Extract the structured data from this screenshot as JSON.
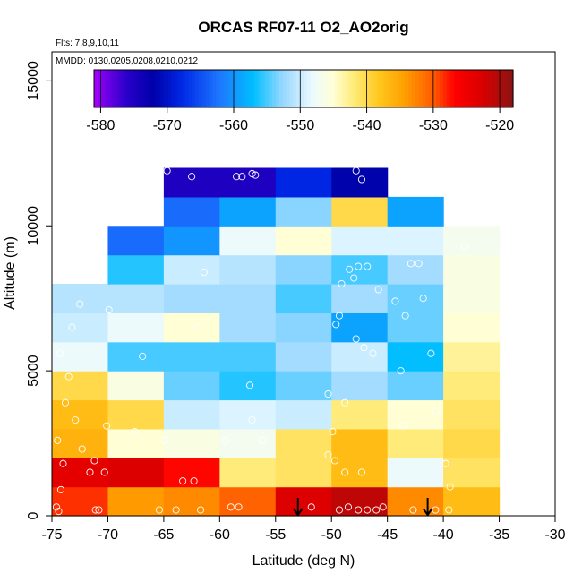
{
  "chart_data": {
    "type": "heatmap",
    "title": "ORCAS RF07-11 O2_AO2orig",
    "subtitle_lines": [
      "Flts: 7,8,9,10,11",
      "MMDD: 0130,0205,0208,0210,0212"
    ],
    "xlabel": "Latitude (deg N)",
    "ylabel": "Altitude (m)",
    "xlim": [
      -75,
      -30
    ],
    "ylim": [
      0,
      16000
    ],
    "x_ticks": [
      -75,
      -70,
      -65,
      -60,
      -55,
      -50,
      -45,
      -40,
      -35,
      -30
    ],
    "y_ticks": [
      0,
      5000,
      10000,
      15000
    ],
    "colorbar": {
      "range": [
        -581,
        -518
      ],
      "ticks": [
        -580,
        -570,
        -560,
        -550,
        -540,
        -530,
        -520
      ]
    },
    "grid": {
      "lat_edges": [
        -75,
        -70,
        -65,
        -60,
        -55,
        -50,
        -45,
        -40,
        -35
      ],
      "alt_edges": [
        0,
        1000,
        2000,
        3000,
        4000,
        5000,
        6000,
        7000,
        8000,
        9000,
        10000,
        11000,
        12000
      ]
    },
    "cells": [
      [
        -528.5,
        -534,
        -533,
        -530.5,
        -523,
        -521,
        -533,
        -537
      ],
      [
        -524,
        -523,
        -527,
        -542,
        -541,
        -537,
        -548,
        -541
      ],
      [
        -536,
        -545,
        -546,
        -547,
        -541,
        -537,
        -542,
        -540
      ],
      [
        -537,
        -540,
        -550,
        -549,
        -550,
        -542,
        -545,
        -541
      ],
      [
        -540,
        -546,
        -554,
        -556,
        -554,
        -552,
        -554,
        -542
      ],
      [
        -548,
        -555,
        -555,
        -555,
        -552,
        -550,
        -557,
        -543
      ],
      [
        -550,
        -548,
        -545,
        -552,
        -553,
        -559,
        -554,
        -545
      ],
      [
        -551,
        -551,
        -552,
        -552,
        -555,
        -552,
        -554,
        -546
      ],
      [
        null,
        -556,
        -550,
        -551,
        -553,
        -555,
        -552,
        -546
      ],
      [
        null,
        -563,
        -560,
        -548,
        -545,
        -549,
        -549,
        -547
      ],
      [
        null,
        null,
        -563,
        -559,
        -553,
        -540,
        -559,
        null
      ],
      [
        null,
        null,
        -575,
        -575,
        -568,
        -572,
        null,
        null
      ]
    ],
    "observations": [
      [
        -74.6,
        300
      ],
      [
        -74.4,
        150
      ],
      [
        -74.2,
        900
      ],
      [
        -74.0,
        1800
      ],
      [
        -74.5,
        2600
      ],
      [
        -73.8,
        3900
      ],
      [
        -73.5,
        4800
      ],
      [
        -72.9,
        3300
      ],
      [
        -72.3,
        2300
      ],
      [
        -71.6,
        1500
      ],
      [
        -71.2,
        1900
      ],
      [
        -70.8,
        200
      ],
      [
        -71.1,
        200
      ],
      [
        -70.3,
        1500
      ],
      [
        -70.1,
        3100
      ],
      [
        -69.9,
        7100
      ],
      [
        -73.2,
        6500
      ],
      [
        -72.5,
        7300
      ],
      [
        -74.3,
        5600
      ],
      [
        -66.9,
        5500
      ],
      [
        -64.9,
        2600
      ],
      [
        -67.6,
        2900
      ],
      [
        -65.4,
        200
      ],
      [
        -63.9,
        200
      ],
      [
        -63.3,
        1200
      ],
      [
        -62.3,
        1200
      ],
      [
        -61.7,
        200
      ],
      [
        -62.0,
        6500
      ],
      [
        -61.4,
        8400
      ],
      [
        -64.7,
        11900
      ],
      [
        -62.5,
        11700
      ],
      [
        -58.5,
        11700
      ],
      [
        -58.0,
        11700
      ],
      [
        -57.1,
        11800
      ],
      [
        -56.8,
        11750
      ],
      [
        -59.0,
        300
      ],
      [
        -58.3,
        300
      ],
      [
        -57.1,
        3300
      ],
      [
        -56.2,
        2600
      ],
      [
        -57.3,
        4500
      ],
      [
        -59.5,
        2600
      ],
      [
        -51.8,
        300
      ],
      [
        -50.3,
        2100
      ],
      [
        -49.7,
        1900
      ],
      [
        -48.8,
        1500
      ],
      [
        -47.3,
        1500
      ],
      [
        -49.3,
        200
      ],
      [
        -48.5,
        300
      ],
      [
        -47.6,
        200
      ],
      [
        -46.8,
        200
      ],
      [
        -46.0,
        200
      ],
      [
        -45.4,
        300
      ],
      [
        -48.4,
        8500
      ],
      [
        -47.6,
        8600
      ],
      [
        -46.8,
        8600
      ],
      [
        -49.1,
        8000
      ],
      [
        -48.0,
        8200
      ],
      [
        -49.6,
        6600
      ],
      [
        -49.3,
        6900
      ],
      [
        -47.8,
        6100
      ],
      [
        -47.1,
        5800
      ],
      [
        -46.3,
        5600
      ],
      [
        -48.8,
        3900
      ],
      [
        -49.9,
        2900
      ],
      [
        -50.3,
        4200
      ],
      [
        -47.8,
        11900
      ],
      [
        -47.3,
        11600
      ],
      [
        -45.8,
        7800
      ],
      [
        -44.3,
        7400
      ],
      [
        -42.9,
        8700
      ],
      [
        -42.2,
        8700
      ],
      [
        -41.8,
        7500
      ],
      [
        -43.4,
        6900
      ],
      [
        -43.8,
        5000
      ],
      [
        -41.1,
        5600
      ],
      [
        -40.7,
        3600
      ],
      [
        -43.6,
        3100
      ],
      [
        -42.7,
        200
      ],
      [
        -40.7,
        200
      ],
      [
        -39.5,
        200
      ],
      [
        -39.4,
        1000
      ],
      [
        -39.8,
        1800
      ],
      [
        -38.1,
        9300
      ]
    ],
    "arrow_latitudes": [
      -53,
      -41.4
    ]
  }
}
